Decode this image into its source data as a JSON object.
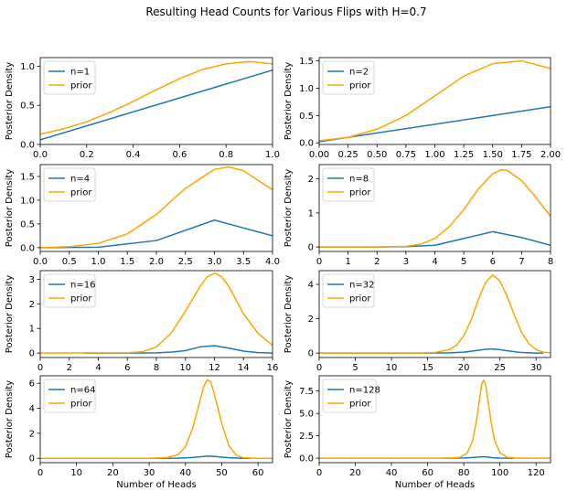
{
  "figure": {
    "title": "Resulting Head Counts for Various Flips with H=0.7"
  },
  "colors": {
    "n_line": "#1f77b4",
    "prior_line": "#ffa500",
    "axes": "#000000"
  },
  "chart_data": [
    {
      "type": "line",
      "ylabel": "Posterior Density",
      "xlabel": "",
      "xlim": [
        0,
        1
      ],
      "ylim": [
        0,
        1.11
      ],
      "xticks": [
        0,
        0.2,
        0.4,
        0.6,
        0.8,
        1.0
      ],
      "xtick_labels": [
        "0.0",
        "0.2",
        "0.4",
        "0.6",
        "0.8",
        "1.0"
      ],
      "yticks": [
        0,
        0.5,
        1.0
      ],
      "ytick_labels": [
        "0.0",
        "0.5",
        "1.0"
      ],
      "legend": "upper-left",
      "series": [
        {
          "name": "n=1",
          "x": [
            0,
            1
          ],
          "y": [
            0.06,
            0.95
          ]
        },
        {
          "name": "prior",
          "x": [
            0,
            0.1,
            0.2,
            0.3,
            0.4,
            0.5,
            0.6,
            0.7,
            0.8,
            0.9,
            1.0
          ],
          "y": [
            0.13,
            0.2,
            0.29,
            0.41,
            0.55,
            0.7,
            0.84,
            0.96,
            1.03,
            1.06,
            1.03
          ]
        }
      ]
    },
    {
      "type": "line",
      "ylabel": "Posterior Density",
      "xlabel": "",
      "xlim": [
        0,
        2
      ],
      "ylim": [
        -0.03,
        1.56
      ],
      "xticks": [
        0,
        0.25,
        0.5,
        0.75,
        1.0,
        1.25,
        1.5,
        1.75,
        2.0
      ],
      "xtick_labels": [
        "0.00",
        "0.25",
        "0.50",
        "0.75",
        "1.00",
        "1.25",
        "1.50",
        "1.75",
        "2.00"
      ],
      "yticks": [
        0,
        0.5,
        1.0,
        1.5
      ],
      "ytick_labels": [
        "0.0",
        "0.5",
        "1.0",
        "1.5"
      ],
      "legend": "upper-left",
      "series": [
        {
          "name": "n=2",
          "x": [
            0,
            2
          ],
          "y": [
            0.02,
            0.66
          ]
        },
        {
          "name": "prior",
          "x": [
            0,
            0.25,
            0.5,
            0.75,
            1.0,
            1.25,
            1.5,
            1.75,
            2.0
          ],
          "y": [
            0.04,
            0.1,
            0.25,
            0.5,
            0.86,
            1.22,
            1.45,
            1.5,
            1.36
          ]
        }
      ]
    },
    {
      "type": "line",
      "ylabel": "Posterior Density",
      "xlabel": "",
      "xlim": [
        0,
        4
      ],
      "ylim": [
        -0.08,
        1.75
      ],
      "xticks": [
        0,
        0.5,
        1,
        1.5,
        2,
        2.5,
        3,
        3.5,
        4
      ],
      "xtick_labels": [
        "0.0",
        "0.5",
        "1.0",
        "1.5",
        "2.0",
        "2.5",
        "3.0",
        "3.5",
        "4.0"
      ],
      "yticks": [
        0,
        0.5,
        1.0,
        1.5
      ],
      "ytick_labels": [
        "0.0",
        "0.5",
        "1.0",
        "1.5"
      ],
      "legend": "upper-left",
      "series": [
        {
          "name": "n=4",
          "x": [
            0,
            1,
            2,
            3,
            4
          ],
          "y": [
            0.0,
            0.01,
            0.15,
            0.58,
            0.25
          ]
        },
        {
          "name": "prior",
          "x": [
            0,
            0.5,
            1.0,
            1.5,
            2.0,
            2.5,
            3.0,
            3.25,
            3.5,
            4.0
          ],
          "y": [
            0.0,
            0.02,
            0.09,
            0.29,
            0.7,
            1.25,
            1.65,
            1.7,
            1.62,
            1.22
          ]
        }
      ]
    },
    {
      "type": "line",
      "ylabel": "Posterior Density",
      "xlabel": "",
      "xlim": [
        0,
        8
      ],
      "ylim": [
        -0.13,
        2.42
      ],
      "xticks": [
        0,
        1,
        2,
        3,
        4,
        5,
        6,
        7,
        8
      ],
      "xtick_labels": [
        "0",
        "1",
        "2",
        "3",
        "4",
        "5",
        "6",
        "7",
        "8"
      ],
      "yticks": [
        0,
        1,
        2
      ],
      "ytick_labels": [
        "0",
        "1",
        "2"
      ],
      "legend": "upper-left",
      "series": [
        {
          "name": "n=8",
          "x": [
            0,
            1,
            2,
            3,
            4,
            5,
            6,
            7,
            8
          ],
          "y": [
            0,
            0,
            0,
            0.01,
            0.05,
            0.25,
            0.45,
            0.28,
            0.05
          ]
        },
        {
          "name": "prior",
          "x": [
            0,
            2,
            3,
            3.5,
            4,
            4.5,
            5,
            5.5,
            6,
            6.3,
            6.5,
            7,
            7.5,
            8
          ],
          "y": [
            0.0,
            0.0,
            0.02,
            0.08,
            0.25,
            0.6,
            1.1,
            1.7,
            2.15,
            2.27,
            2.25,
            1.95,
            1.45,
            0.9
          ]
        }
      ]
    },
    {
      "type": "line",
      "ylabel": "Posterior Density",
      "xlabel": "",
      "xlim": [
        0,
        16
      ],
      "ylim": [
        -0.18,
        3.35
      ],
      "xticks": [
        0,
        2,
        4,
        6,
        8,
        10,
        12,
        14,
        16
      ],
      "xtick_labels": [
        "0",
        "2",
        "4",
        "6",
        "8",
        "10",
        "12",
        "14",
        "16"
      ],
      "yticks": [
        0,
        1,
        2,
        3
      ],
      "ytick_labels": [
        "0",
        "1",
        "2",
        "3"
      ],
      "legend": "upper-left",
      "series": [
        {
          "name": "n=16",
          "x": [
            3,
            6,
            8,
            9,
            10,
            11,
            12,
            13,
            14,
            15,
            16
          ],
          "y": [
            0,
            0,
            0.01,
            0.04,
            0.1,
            0.25,
            0.3,
            0.2,
            0.08,
            0.02,
            0.0
          ]
        },
        {
          "name": "prior",
          "x": [
            0,
            6,
            7,
            8,
            9,
            10,
            11,
            11.5,
            12,
            12.5,
            13,
            14,
            15,
            16
          ],
          "y": [
            0.0,
            0.01,
            0.05,
            0.25,
            0.8,
            1.7,
            2.7,
            3.1,
            3.25,
            3.1,
            2.7,
            1.6,
            0.8,
            0.32
          ]
        }
      ]
    },
    {
      "type": "line",
      "ylabel": "Posterior Density",
      "xlabel": "",
      "xlim": [
        0,
        32
      ],
      "ylim": [
        -0.26,
        4.8
      ],
      "xticks": [
        0,
        5,
        10,
        15,
        20,
        25,
        30
      ],
      "xtick_labels": [
        "0",
        "5",
        "10",
        "15",
        "20",
        "25",
        "30"
      ],
      "yticks": [
        0,
        2,
        4
      ],
      "ytick_labels": [
        "0",
        "2",
        "4"
      ],
      "legend": "upper-left",
      "series": [
        {
          "name": "n=32",
          "x": [
            0,
            15,
            18,
            20,
            22,
            23,
            24,
            25,
            26,
            28,
            30,
            31
          ],
          "y": [
            0,
            0,
            0.01,
            0.05,
            0.16,
            0.22,
            0.24,
            0.2,
            0.13,
            0.03,
            0,
            0
          ]
        },
        {
          "name": "prior",
          "x": [
            0,
            14,
            16,
            18,
            19,
            20,
            21,
            22,
            23,
            24,
            25,
            26,
            27,
            28,
            29,
            30,
            31,
            32
          ],
          "y": [
            0.0,
            0.0,
            0.03,
            0.2,
            0.45,
            1.0,
            1.9,
            3.1,
            4.1,
            4.55,
            4.2,
            3.3,
            2.2,
            1.2,
            0.55,
            0.2,
            0.05,
            0.01
          ]
        }
      ]
    },
    {
      "type": "line",
      "ylabel": "Posterior Density",
      "xlabel": "Number of Heads",
      "xlim": [
        0,
        64
      ],
      "ylim": [
        -0.35,
        6.6
      ],
      "xticks": [
        0,
        10,
        20,
        30,
        40,
        50,
        60
      ],
      "xtick_labels": [
        "0",
        "10",
        "20",
        "30",
        "40",
        "50",
        "60"
      ],
      "yticks": [
        0,
        2,
        4,
        6
      ],
      "ytick_labels": [
        "0",
        "2",
        "4",
        "6"
      ],
      "legend": "upper-left",
      "series": [
        {
          "name": "n=64",
          "x": [
            12,
            30,
            38,
            42,
            44,
            46,
            48,
            50,
            52,
            56,
            58
          ],
          "y": [
            0,
            0,
            0.01,
            0.06,
            0.12,
            0.17,
            0.15,
            0.09,
            0.04,
            0.0,
            0.0
          ]
        },
        {
          "name": "prior",
          "x": [
            0,
            30,
            35,
            38,
            40,
            42,
            44,
            45,
            46,
            47,
            48,
            50,
            52,
            54,
            56,
            60,
            64
          ],
          "y": [
            0.0,
            0.0,
            0.05,
            0.3,
            0.9,
            2.4,
            4.6,
            5.7,
            6.3,
            6.1,
            5.1,
            2.8,
            1.0,
            0.25,
            0.04,
            0.0,
            0.0
          ]
        }
      ]
    },
    {
      "type": "line",
      "ylabel": "Posterior Density",
      "xlabel": "Number of Heads",
      "xlim": [
        0,
        128
      ],
      "ylim": [
        -0.5,
        9.2
      ],
      "xticks": [
        0,
        20,
        40,
        60,
        80,
        100,
        120
      ],
      "xtick_labels": [
        "0",
        "20",
        "40",
        "60",
        "80",
        "100",
        "120"
      ],
      "yticks": [
        0,
        2.5,
        5.0,
        7.5
      ],
      "ytick_labels": [
        "0.0",
        "2.5",
        "5.0",
        "7.5"
      ],
      "legend": "upper-left",
      "series": [
        {
          "name": "n=128",
          "x": [
            68,
            80,
            85,
            88,
            90,
            92,
            94,
            96,
            100,
            108
          ],
          "y": [
            0,
            0.02,
            0.07,
            0.13,
            0.16,
            0.15,
            0.1,
            0.05,
            0.01,
            0
          ]
        },
        {
          "name": "prior",
          "x": [
            0,
            70,
            78,
            82,
            85,
            87,
            89,
            90,
            91,
            92,
            93,
            95,
            97,
            100,
            104,
            110,
            128
          ],
          "y": [
            0.0,
            0.0,
            0.1,
            0.6,
            2.0,
            4.2,
            7.0,
            8.3,
            8.7,
            8.3,
            7.0,
            4.2,
            2.0,
            0.6,
            0.1,
            0.0,
            0.0
          ]
        }
      ]
    }
  ]
}
